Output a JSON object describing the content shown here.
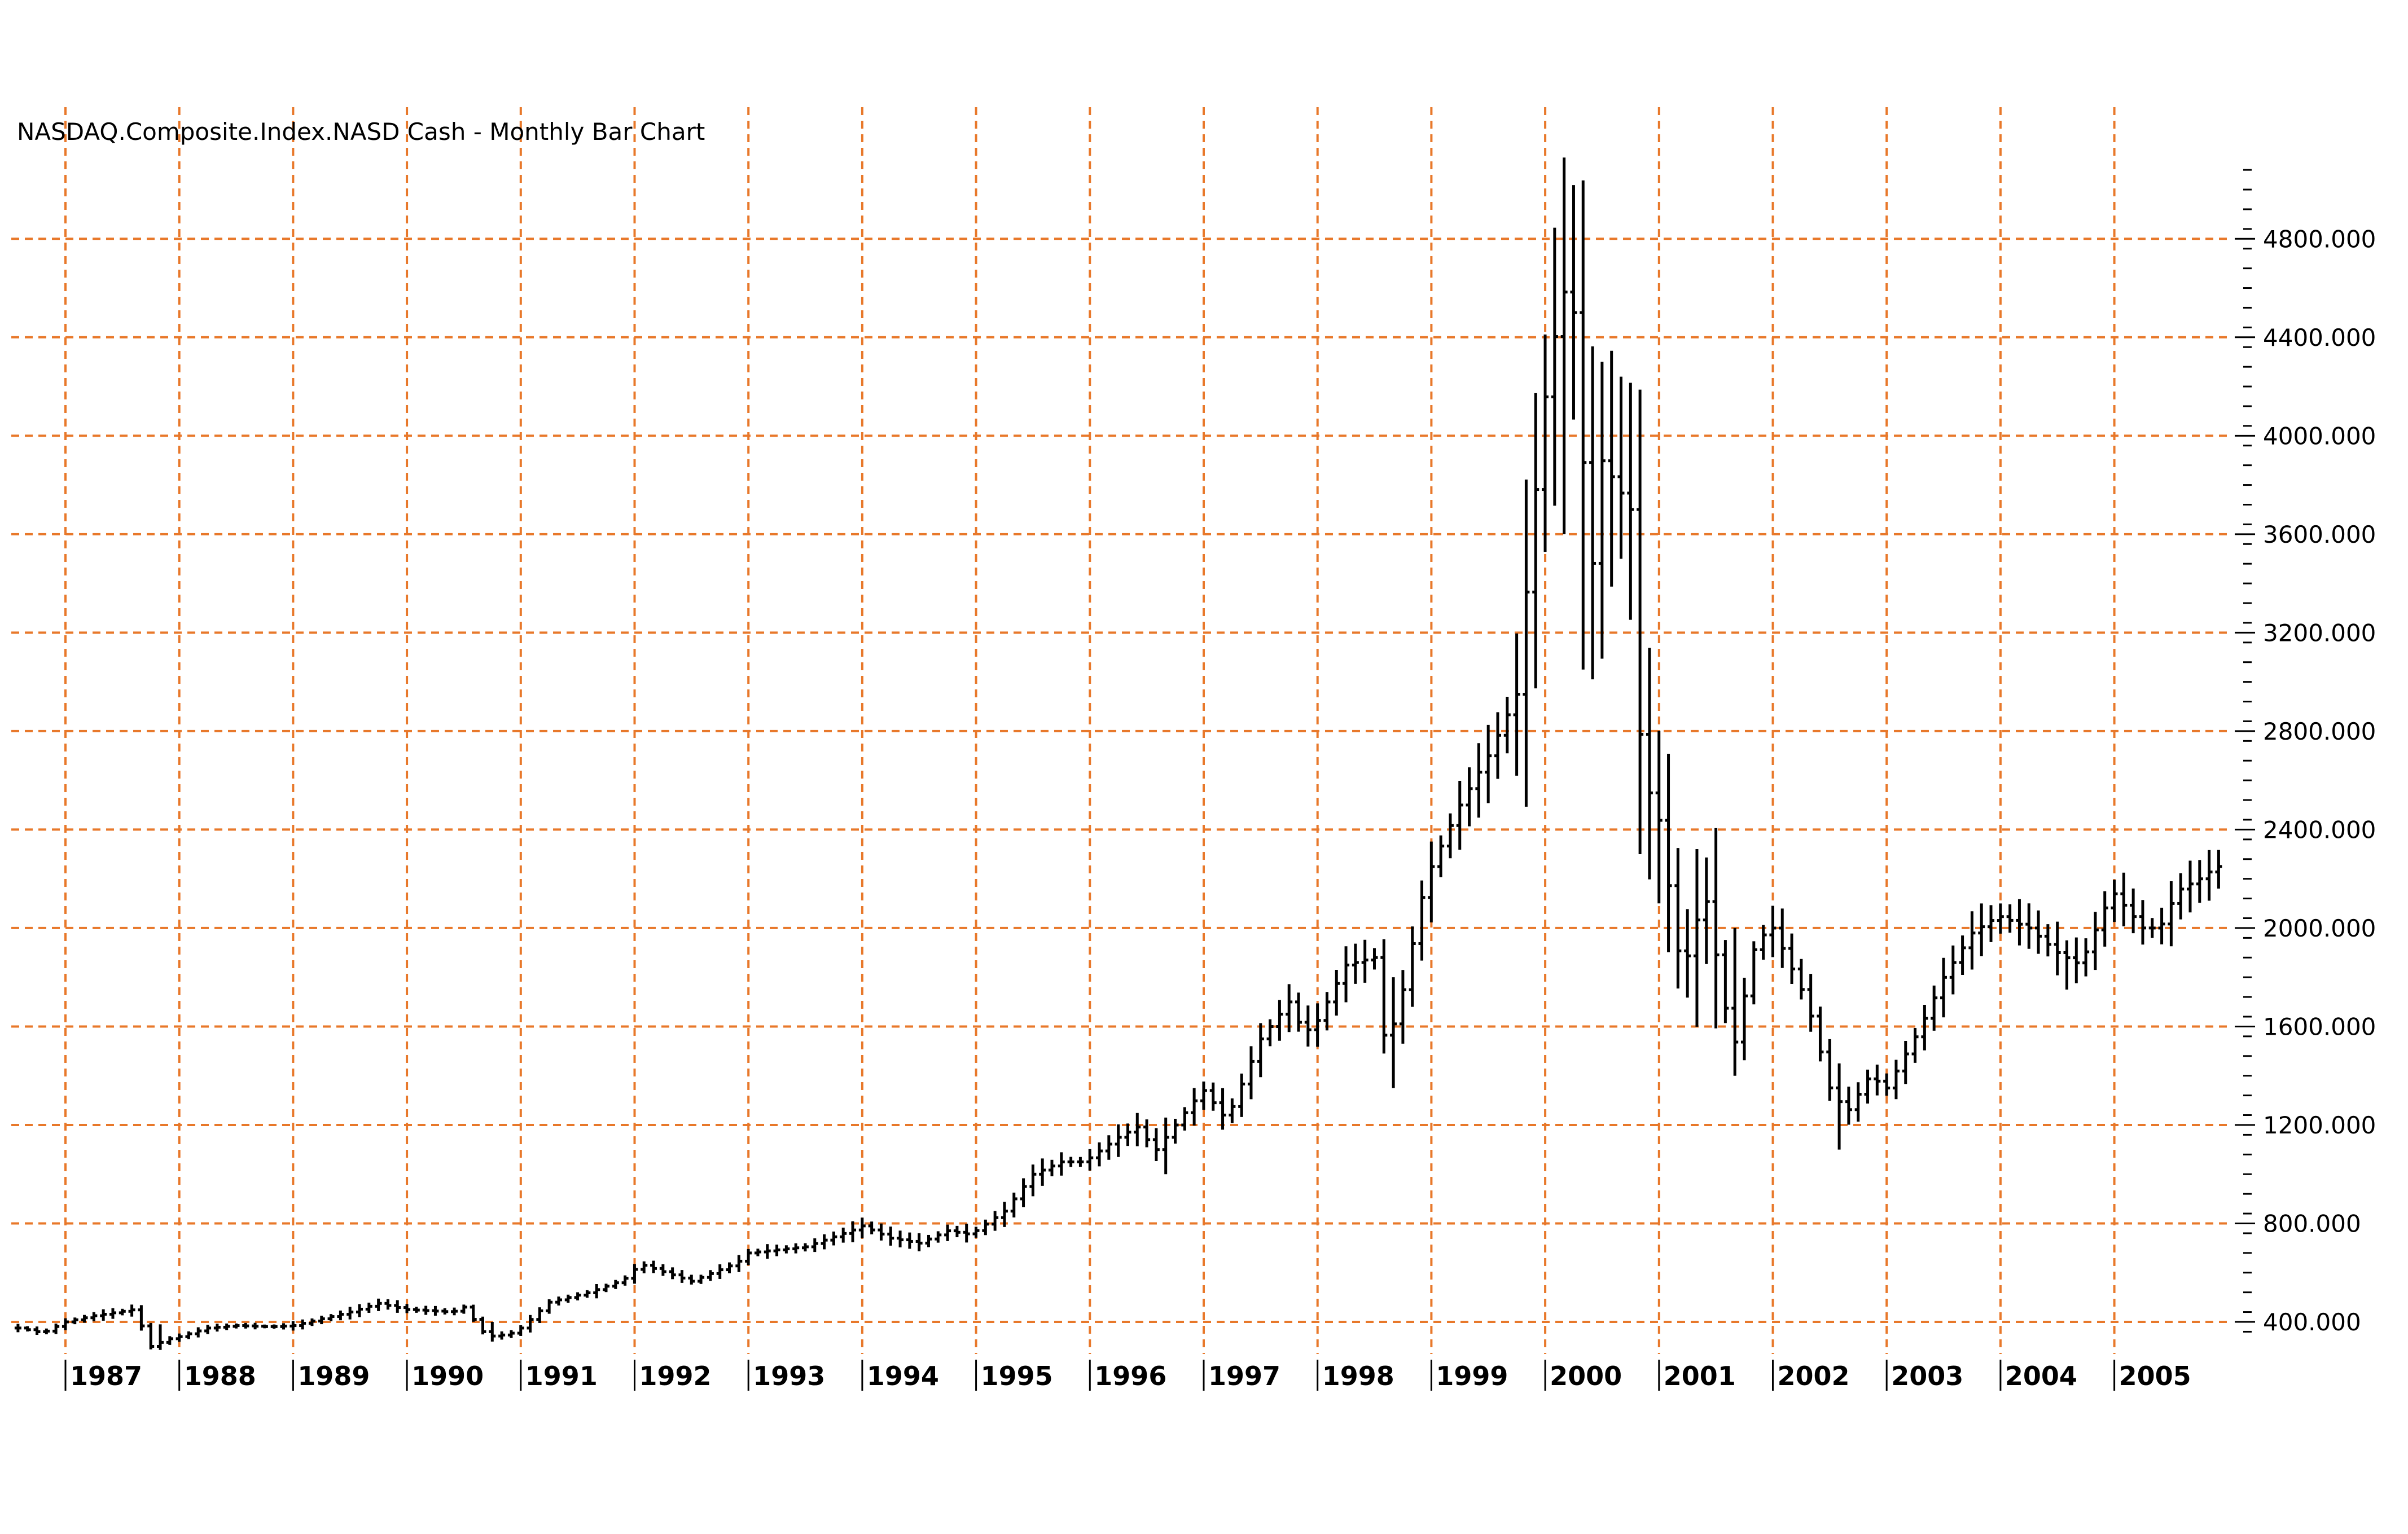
{
  "colors": {
    "grid": "#e8782a",
    "bars": "#000000",
    "background": "#ffffff",
    "text": "#000000"
  },
  "chart_data": {
    "type": "bar",
    "style": "ohlc-monthly",
    "title": "NASDAQ.Composite.Index.NASD Cash - Monthly Bar Chart",
    "xlabel": "",
    "ylabel": "",
    "y_axis_position": "right",
    "grid": true,
    "ylim": [
      200,
      5400
    ],
    "xlim": [
      1986.55,
      2006.25
    ],
    "yticks": [
      "400.000",
      "800.000",
      "1200.000",
      "1600.000",
      "2000.000",
      "2400.000",
      "2800.000",
      "3200.000",
      "3600.000",
      "4000.000",
      "4400.000",
      "4800.000"
    ],
    "ytick_values": [
      400,
      800,
      1200,
      1600,
      2000,
      2400,
      2800,
      3200,
      3600,
      4000,
      4400,
      4800
    ],
    "xticks": [
      "1987",
      "1988",
      "1989",
      "1990",
      "1991",
      "1992",
      "1993",
      "1994",
      "1995",
      "1996",
      "1997",
      "1998",
      "1999",
      "2000",
      "2001",
      "2002",
      "2003",
      "2004",
      "2005"
    ],
    "xtick_values": [
      1987,
      1988,
      1989,
      1990,
      1991,
      1992,
      1993,
      1994,
      1995,
      1996,
      1997,
      1998,
      1999,
      2000,
      2001,
      2002,
      2003,
      2004,
      2005
    ],
    "series": [
      {
        "close_anchors": [
          [
            1986.6,
            375
          ],
          [
            1986.8,
            355
          ],
          [
            1987.0,
            400
          ],
          [
            1987.25,
            425
          ],
          [
            1987.6,
            450
          ],
          [
            1987.75,
            300
          ],
          [
            1987.9,
            330
          ],
          [
            1988.0,
            340
          ],
          [
            1988.25,
            375
          ],
          [
            1988.5,
            385
          ],
          [
            1988.8,
            380
          ],
          [
            1989.0,
            385
          ],
          [
            1989.5,
            440
          ],
          [
            1989.75,
            475
          ],
          [
            1990.0,
            450
          ],
          [
            1990.4,
            440
          ],
          [
            1990.5,
            460
          ],
          [
            1990.7,
            340
          ],
          [
            1990.9,
            350
          ],
          [
            1991.0,
            375
          ],
          [
            1991.25,
            480
          ],
          [
            1991.6,
            520
          ],
          [
            1991.9,
            570
          ],
          [
            1992.05,
            635
          ],
          [
            1992.5,
            565
          ],
          [
            1992.9,
            640
          ],
          [
            1993.0,
            680
          ],
          [
            1993.5,
            705
          ],
          [
            1993.9,
            770
          ],
          [
            1994.0,
            790
          ],
          [
            1994.25,
            740
          ],
          [
            1994.5,
            720
          ],
          [
            1994.75,
            770
          ],
          [
            1994.95,
            755
          ],
          [
            1995.25,
            850
          ],
          [
            1995.5,
            1000
          ],
          [
            1995.75,
            1050
          ],
          [
            1995.95,
            1050
          ],
          [
            1996.25,
            1150
          ],
          [
            1996.45,
            1200
          ],
          [
            1996.55,
            1080
          ],
          [
            1996.9,
            1290
          ],
          [
            1997.0,
            1340
          ],
          [
            1997.2,
            1220
          ],
          [
            1997.5,
            1550
          ],
          [
            1997.75,
            1700
          ],
          [
            1997.85,
            1600
          ],
          [
            1997.95,
            1580
          ],
          [
            1998.25,
            1850
          ],
          [
            1998.5,
            1880
          ],
          [
            1998.6,
            1500
          ],
          [
            1998.75,
            1750
          ],
          [
            1998.95,
            2200
          ],
          [
            1999.25,
            2500
          ],
          [
            1999.5,
            2700
          ],
          [
            1999.75,
            2950
          ],
          [
            1999.9,
            3700
          ],
          [
            1999.98,
            4100
          ],
          [
            2000.15,
            4600
          ],
          [
            2000.25,
            4500
          ],
          [
            2000.4,
            3400
          ],
          [
            2000.5,
            3900
          ],
          [
            2000.75,
            3700
          ],
          [
            2000.85,
            2600
          ],
          [
            2000.98,
            2500
          ],
          [
            2001.2,
            1800
          ],
          [
            2001.4,
            2150
          ],
          [
            2001.65,
            1500
          ],
          [
            2001.85,
            1950
          ],
          [
            2002.0,
            2000
          ],
          [
            2002.3,
            1700
          ],
          [
            2002.5,
            1350
          ],
          [
            2002.65,
            1250
          ],
          [
            2002.85,
            1400
          ],
          [
            2003.0,
            1350
          ],
          [
            2003.3,
            1600
          ],
          [
            2003.5,
            1800
          ],
          [
            2003.75,
            1980
          ],
          [
            2003.98,
            2050
          ],
          [
            2004.25,
            2000
          ],
          [
            2004.5,
            1900
          ],
          [
            2004.7,
            1850
          ],
          [
            2004.98,
            2150
          ],
          [
            2005.25,
            2000
          ],
          [
            2005.4,
            2000
          ],
          [
            2005.55,
            2150
          ],
          [
            2005.75,
            2200
          ],
          [
            2005.9,
            2250
          ]
        ],
        "spike_anchors": [
          [
            2000.15,
            5130,
            3600
          ],
          [
            2000.32,
            4300,
            3050
          ],
          [
            2000.48,
            4300,
            3200
          ],
          [
            2000.65,
            4240,
            3500
          ],
          [
            2001.0,
            2800,
            2100
          ],
          [
            2001.3,
            2200,
            1600
          ],
          [
            2001.7,
            2000,
            1400
          ],
          [
            2002.55,
            1450,
            1100
          ],
          [
            1998.65,
            1800,
            1350
          ],
          [
            1990.75,
            400,
            320
          ],
          [
            1987.8,
            390,
            290
          ],
          [
            2004.6,
            1950,
            1750
          ],
          [
            1996.65,
            1230,
            1000
          ]
        ],
        "start": 1986.583,
        "end": 2005.917
      }
    ]
  }
}
